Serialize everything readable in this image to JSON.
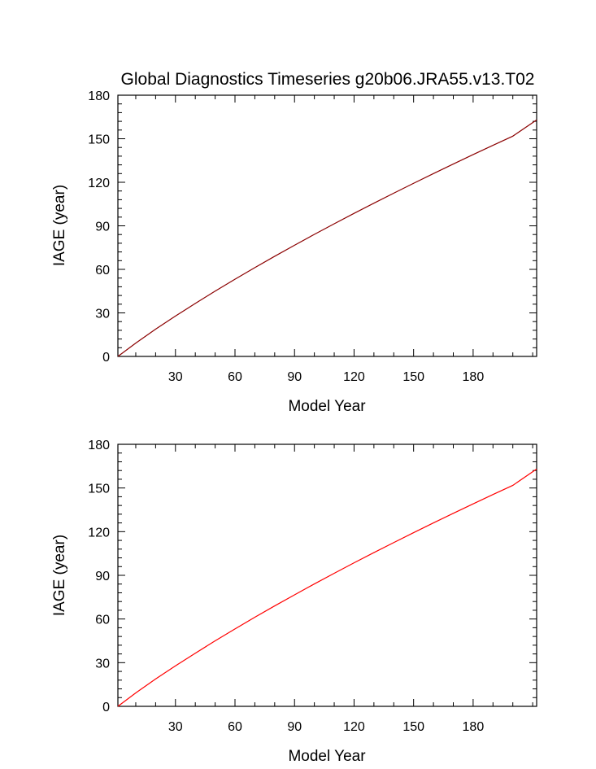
{
  "chart_data": [
    {
      "type": "line",
      "title": "Global Diagnostics Timeseries g20b06.JRA55.v13.T02",
      "xlabel": "Model Year",
      "ylabel": "IAGE (year)",
      "xlim": [
        1,
        212
      ],
      "ylim": [
        0,
        180
      ],
      "x_ticks": [
        30,
        60,
        90,
        120,
        150,
        180
      ],
      "y_ticks": [
        0,
        30,
        60,
        90,
        120,
        150,
        180
      ],
      "grid": false,
      "series": [
        {
          "color": "#8b0000",
          "x": [
            1,
            10,
            20,
            30,
            40,
            50,
            60,
            70,
            80,
            90,
            100,
            110,
            120,
            130,
            140,
            150,
            160,
            170,
            180,
            190,
            200,
            212
          ],
          "values": [
            0,
            9.2,
            18.8,
            27.8,
            36.5,
            45.0,
            53.2,
            61.2,
            69.0,
            76.6,
            84.1,
            91.4,
            98.6,
            105.6,
            112.5,
            119.3,
            126.0,
            132.6,
            139.1,
            145.5,
            151.8,
            163
          ]
        }
      ]
    },
    {
      "type": "line",
      "title": "",
      "xlabel": "Model Year",
      "ylabel": "IAGE (year)",
      "xlim": [
        1,
        212
      ],
      "ylim": [
        0,
        180
      ],
      "x_ticks": [
        30,
        60,
        90,
        120,
        150,
        180
      ],
      "y_ticks": [
        0,
        30,
        60,
        90,
        120,
        150,
        180
      ],
      "grid": false,
      "series": [
        {
          "color": "#ff0000",
          "x": [
            1,
            10,
            20,
            30,
            40,
            50,
            60,
            70,
            80,
            90,
            100,
            110,
            120,
            130,
            140,
            150,
            160,
            170,
            180,
            190,
            200,
            212
          ],
          "values": [
            0,
            9.2,
            18.8,
            27.8,
            36.5,
            45.0,
            53.2,
            61.2,
            69.0,
            76.6,
            84.1,
            91.4,
            98.6,
            105.6,
            112.5,
            119.3,
            126.0,
            132.6,
            139.1,
            145.5,
            151.8,
            163
          ]
        }
      ]
    }
  ]
}
